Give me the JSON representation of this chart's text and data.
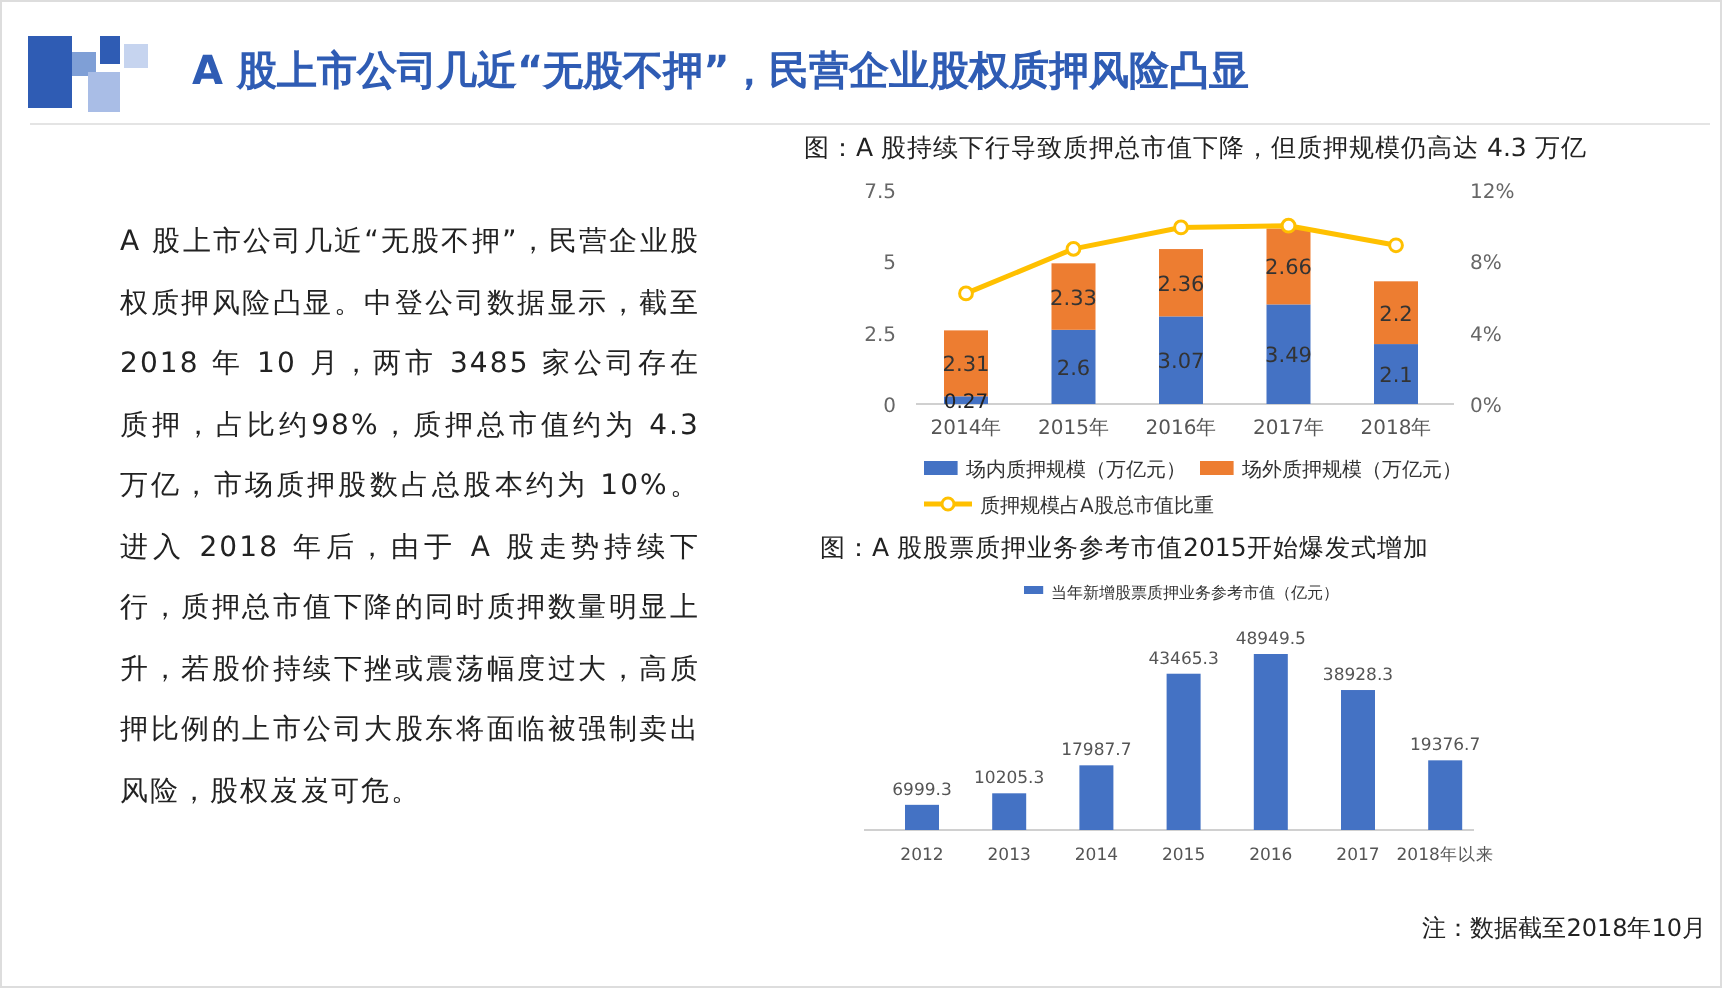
{
  "chart_data": [
    {
      "type": "other",
      "title": "A 股上市公司几近“无股不押”，民营企业股权质押风险凸显",
      "annotations": [
        "A 股上市公司几近“无股不押”，民营企业股权质押风险凸显。中登公司数据显示，截至 2018 年 10 月，两市 3485 家公司存在质押，占比约98%，质押总市值约为 4.3 万亿，市场质押股数占总股本约为 10%。进入 2018 年后，由于 A 股走势持续下行，质押总市值下降的同时质押数量明显上升，若股价持续下挫或震荡幅度过大，高质押比例的上市公司大股东将面临被强制卖出风险，股权岌岌可危。"
      ]
    },
    {
      "type": "bar",
      "title": "图：A 股持续下行导致质押总市值下降，但质押规模仍高达 4.3 万亿",
      "stacked": true,
      "legend": "bottom",
      "categories": [
        "2014年",
        "2015年",
        "2016年",
        "2017年",
        "2018年"
      ],
      "ylim": [
        0,
        7.5
      ],
      "yticks": [
        0,
        2.5,
        5,
        7.5
      ],
      "y2lim": [
        0,
        12
      ],
      "y2ticks": [
        {
          "value": 0,
          "label": "0%"
        },
        {
          "value": 4,
          "label": "4%"
        },
        {
          "value": 8,
          "label": "8%"
        },
        {
          "value": 12,
          "label": "12%"
        }
      ],
      "series": [
        {
          "name": "场内质押规模（万亿元）",
          "color": "#4472c4",
          "values": [
            0.27,
            2.6,
            3.07,
            3.49,
            2.1
          ],
          "value_labels": [
            "0.27",
            "2.6",
            "3.07",
            "3.49",
            "2.1"
          ]
        },
        {
          "name": "场外质押规模（万亿元）",
          "color": "#ed7d31",
          "values": [
            2.31,
            2.33,
            2.36,
            2.66,
            2.2
          ],
          "value_labels": [
            "2.31",
            "2.33",
            "2.36",
            "2.66",
            "2.2"
          ]
        },
        {
          "name": "质押规模占A股总市值比重",
          "type": "line",
          "axis": "y2",
          "marker": "circle",
          "color": "#ffc000",
          "values": [
            6.2,
            8.7,
            9.9,
            10.0,
            8.9
          ]
        }
      ]
    },
    {
      "type": "bar",
      "title": "图：A 股股票质押业务参考市值2015开始爆发式增加",
      "legend": "top",
      "data_labels": true,
      "categories": [
        "2012",
        "2013",
        "2014",
        "2015",
        "2016",
        "2017",
        "2018年以来"
      ],
      "series": [
        {
          "name": "当年新增股票质押业务参考市值（亿元）",
          "color": "#4472c4",
          "values": [
            6999.3,
            10205.3,
            17987.7,
            43465.3,
            48949.5,
            38928.3,
            19376.7
          ]
        }
      ],
      "annotations": [
        "注：数据截至2018年10月"
      ]
    }
  ]
}
